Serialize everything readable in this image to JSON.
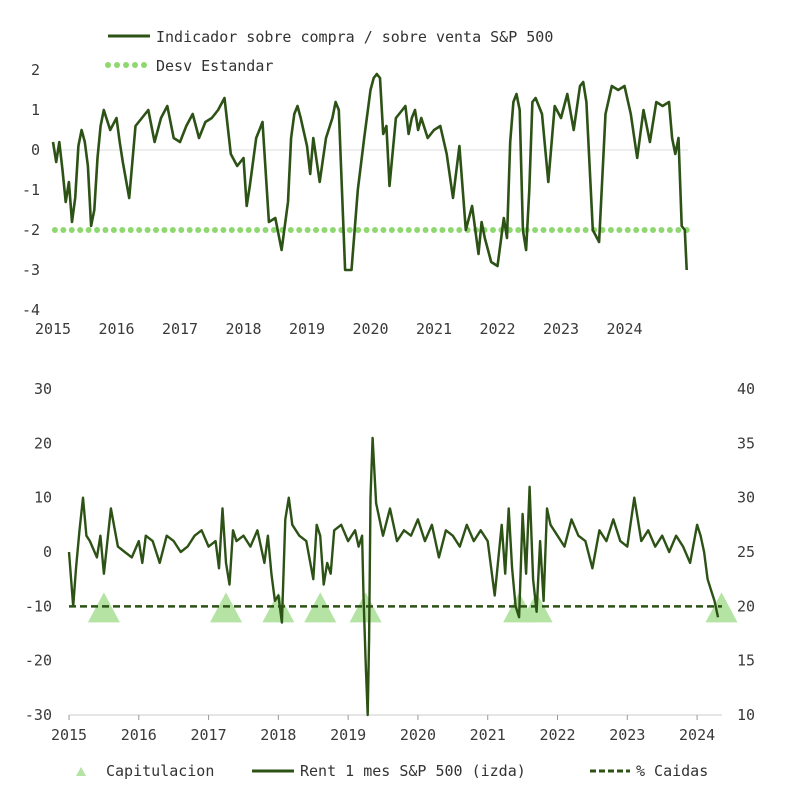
{
  "colors": {
    "series": "#2d5216",
    "std": "#8fd870",
    "capitulation": "#b5e3a3",
    "caidas": "#2d5216",
    "zero_line": "#dddddd",
    "text": "#3a3a3a"
  },
  "chart_data": [
    {
      "type": "line",
      "legend": {
        "line_label": "Indicador sobre compra / sobre venta S&P 500",
        "dots_label": "Desv Estandar",
        "placement": "top-left"
      },
      "x_range": [
        2015,
        2025
      ],
      "ylim": [
        -4,
        2
      ],
      "y_ticks": [
        "2",
        "1",
        "0",
        "-1",
        "-2",
        "-3",
        "-4"
      ],
      "y_tick_values": [
        2,
        1,
        0,
        -1,
        -2,
        -3,
        -4
      ],
      "x_ticks": [
        "2015",
        "2016",
        "2017",
        "2018",
        "2019",
        "2020",
        "2021",
        "2022",
        "2023",
        "2024"
      ],
      "x_tick_values": [
        2015,
        2016,
        2017,
        2018,
        2019,
        2020,
        2021,
        2022,
        2023,
        2024
      ],
      "std_level": -2,
      "std_range": [
        2015.03,
        2024.98
      ],
      "series": {
        "name": "Indicador sobre compra / sobre venta S&P 500",
        "x": [
          2015.0,
          2015.05,
          2015.1,
          2015.15,
          2015.2,
          2015.25,
          2015.3,
          2015.35,
          2015.4,
          2015.45,
          2015.5,
          2015.55,
          2015.6,
          2015.65,
          2015.7,
          2015.75,
          2015.8,
          2015.9,
          2016.0,
          2016.05,
          2016.1,
          2016.2,
          2016.3,
          2016.4,
          2016.5,
          2016.6,
          2016.7,
          2016.8,
          2016.9,
          2017.0,
          2017.1,
          2017.2,
          2017.3,
          2017.4,
          2017.5,
          2017.6,
          2017.7,
          2017.8,
          2017.9,
          2018.0,
          2018.05,
          2018.1,
          2018.15,
          2018.2,
          2018.25,
          2018.3,
          2018.4,
          2018.5,
          2018.6,
          2018.7,
          2018.75,
          2018.8,
          2018.85,
          2018.9,
          2019.0,
          2019.05,
          2019.1,
          2019.2,
          2019.3,
          2019.4,
          2019.45,
          2019.5,
          2019.6,
          2019.7,
          2019.8,
          2019.9,
          2020.0,
          2020.05,
          2020.1,
          2020.15,
          2020.2,
          2020.25,
          2020.3,
          2020.4,
          2020.5,
          2020.55,
          2020.6,
          2020.65,
          2020.7,
          2020.75,
          2020.8,
          2020.9,
          2021.0,
          2021.1,
          2021.2,
          2021.3,
          2021.4,
          2021.5,
          2021.6,
          2021.7,
          2021.75,
          2021.8,
          2021.9,
          2022.0,
          2022.05,
          2022.1,
          2022.15,
          2022.2,
          2022.25,
          2022.3,
          2022.35,
          2022.4,
          2022.45,
          2022.5,
          2022.55,
          2022.6,
          2022.7,
          2022.8,
          2022.9,
          2023.0,
          2023.1,
          2023.2,
          2023.3,
          2023.35,
          2023.4,
          2023.5,
          2023.6,
          2023.7,
          2023.8,
          2023.9,
          2024.0,
          2024.1,
          2024.2,
          2024.3,
          2024.4,
          2024.5,
          2024.6,
          2024.7,
          2024.75,
          2024.8,
          2024.85,
          2024.9,
          2024.95,
          2024.98
        ],
        "values": [
          0.2,
          -0.3,
          0.2,
          -0.5,
          -1.3,
          -0.8,
          -1.8,
          -1.2,
          0.1,
          0.5,
          0.2,
          -0.4,
          -1.9,
          -1.5,
          -0.2,
          0.6,
          1.0,
          0.5,
          0.8,
          0.2,
          -0.3,
          -1.2,
          0.6,
          0.8,
          1.0,
          0.2,
          0.8,
          1.1,
          0.3,
          0.2,
          0.6,
          0.9,
          0.3,
          0.7,
          0.8,
          1.0,
          1.3,
          -0.1,
          -0.4,
          -0.2,
          -1.4,
          -0.9,
          -0.3,
          0.3,
          0.5,
          0.7,
          -1.8,
          -1.7,
          -2.5,
          -1.3,
          0.3,
          0.9,
          1.1,
          0.8,
          0.1,
          -0.6,
          0.3,
          -0.8,
          0.3,
          0.8,
          1.2,
          1.0,
          -3.0,
          -3.0,
          -1.0,
          0.3,
          1.5,
          1.8,
          1.9,
          1.8,
          0.4,
          0.6,
          -0.9,
          0.8,
          1.0,
          1.1,
          0.4,
          0.8,
          1.0,
          0.5,
          0.8,
          0.3,
          0.5,
          0.6,
          -0.1,
          -1.2,
          0.1,
          -2.0,
          -1.4,
          -2.6,
          -1.8,
          -2.2,
          -2.8,
          -2.9,
          -2.3,
          -1.7,
          -2.2,
          0.2,
          1.2,
          1.4,
          1.0,
          -2.0,
          -2.5,
          -1.0,
          1.2,
          1.3,
          0.9,
          -0.8,
          1.1,
          0.8,
          1.4,
          0.5,
          1.6,
          1.7,
          1.2,
          -2.0,
          -2.3,
          0.9,
          1.6,
          1.5,
          1.6,
          0.9,
          -0.2,
          1.0,
          0.2,
          1.2,
          1.1,
          1.2,
          0.3,
          -0.1,
          0.3,
          -1.9,
          -2.0,
          -3.0
        ]
      }
    },
    {
      "type": "line",
      "legend": {
        "capitulation_label": "Capitulacion",
        "line_label": "Rent 1 mes S&P 500 (izda)",
        "dashed_label": "% Caidas",
        "placement": "bottom"
      },
      "x_range": [
        2015,
        2024.4
      ],
      "ylim_left": [
        -30,
        30
      ],
      "ylim_right": [
        10,
        40
      ],
      "y_ticks_left": [
        "30",
        "20",
        "10",
        "0",
        "-10",
        "-20",
        "-30"
      ],
      "y_tick_values_left": [
        30,
        20,
        10,
        0,
        -10,
        -20,
        -30
      ],
      "y_ticks_right": [
        "40",
        "35",
        "30",
        "25",
        "20",
        "15",
        "10"
      ],
      "y_tick_values_right": [
        40,
        35,
        30,
        25,
        20,
        15,
        10
      ],
      "x_ticks": [
        "2015",
        "2016",
        "2017",
        "2018",
        "2019",
        "2020",
        "2021",
        "2022",
        "2023",
        "2024"
      ],
      "x_tick_values": [
        2015,
        2016,
        2017,
        2018,
        2019,
        2020,
        2021,
        2022,
        2023,
        2024
      ],
      "caidas_level": -10,
      "capitulation_x": [
        2015.5,
        2017.25,
        2018.0,
        2018.6,
        2019.25,
        2021.45,
        2021.7,
        2024.35
      ],
      "series": {
        "name": "Rent 1 mes S&P 500 (izda)",
        "x": [
          2015.0,
          2015.03,
          2015.06,
          2015.1,
          2015.15,
          2015.2,
          2015.25,
          2015.3,
          2015.4,
          2015.45,
          2015.5,
          2015.55,
          2015.6,
          2015.7,
          2015.8,
          2015.9,
          2016.0,
          2016.05,
          2016.1,
          2016.2,
          2016.3,
          2016.4,
          2016.5,
          2016.6,
          2016.7,
          2016.8,
          2016.9,
          2017.0,
          2017.1,
          2017.15,
          2017.2,
          2017.25,
          2017.3,
          2017.35,
          2017.4,
          2017.5,
          2017.6,
          2017.7,
          2017.8,
          2017.85,
          2017.9,
          2017.95,
          2018.0,
          2018.05,
          2018.1,
          2018.15,
          2018.2,
          2018.3,
          2018.4,
          2018.5,
          2018.55,
          2018.6,
          2018.65,
          2018.7,
          2018.75,
          2018.8,
          2018.9,
          2019.0,
          2019.1,
          2019.15,
          2019.2,
          2019.22,
          2019.25,
          2019.28,
          2019.3,
          2019.32,
          2019.35,
          2019.4,
          2019.5,
          2019.6,
          2019.7,
          2019.8,
          2019.9,
          2020.0,
          2020.1,
          2020.2,
          2020.3,
          2020.4,
          2020.5,
          2020.6,
          2020.7,
          2020.8,
          2020.9,
          2021.0,
          2021.1,
          2021.2,
          2021.25,
          2021.3,
          2021.35,
          2021.4,
          2021.45,
          2021.5,
          2021.55,
          2021.6,
          2021.65,
          2021.7,
          2021.75,
          2021.8,
          2021.85,
          2021.9,
          2022.0,
          2022.1,
          2022.2,
          2022.3,
          2022.4,
          2022.5,
          2022.6,
          2022.7,
          2022.8,
          2022.9,
          2023.0,
          2023.1,
          2023.2,
          2023.3,
          2023.4,
          2023.5,
          2023.6,
          2023.7,
          2023.8,
          2023.9,
          2024.0,
          2024.05,
          2024.1,
          2024.15,
          2024.2,
          2024.25,
          2024.3
        ],
        "values": [
          0,
          -5,
          -10,
          -3,
          4,
          10,
          3,
          2,
          -1,
          3,
          -4,
          2,
          8,
          1,
          0,
          -1,
          2,
          -2,
          3,
          2,
          -2,
          3,
          2,
          0,
          1,
          3,
          4,
          1,
          2,
          -3,
          8,
          -2,
          -6,
          4,
          2,
          3,
          1,
          4,
          -2,
          3,
          -4,
          -9,
          -8,
          -13,
          6,
          10,
          5,
          3,
          2,
          -5,
          5,
          3,
          -6,
          -2,
          -4,
          4,
          5,
          2,
          4,
          1,
          3,
          -8,
          -20,
          -30,
          -16,
          10,
          21,
          9,
          3,
          8,
          2,
          4,
          3,
          6,
          2,
          5,
          -1,
          4,
          3,
          1,
          5,
          2,
          4,
          2,
          -8,
          5,
          -4,
          8,
          -3,
          -10,
          -12,
          7,
          -4,
          12,
          -5,
          -11,
          2,
          -9,
          8,
          5,
          3,
          1,
          6,
          3,
          2,
          -3,
          4,
          2,
          6,
          2,
          1,
          10,
          2,
          4,
          1,
          3,
          0,
          3,
          1,
          -2,
          5,
          3,
          0,
          -5,
          -7,
          -9,
          -12
        ]
      }
    }
  ]
}
